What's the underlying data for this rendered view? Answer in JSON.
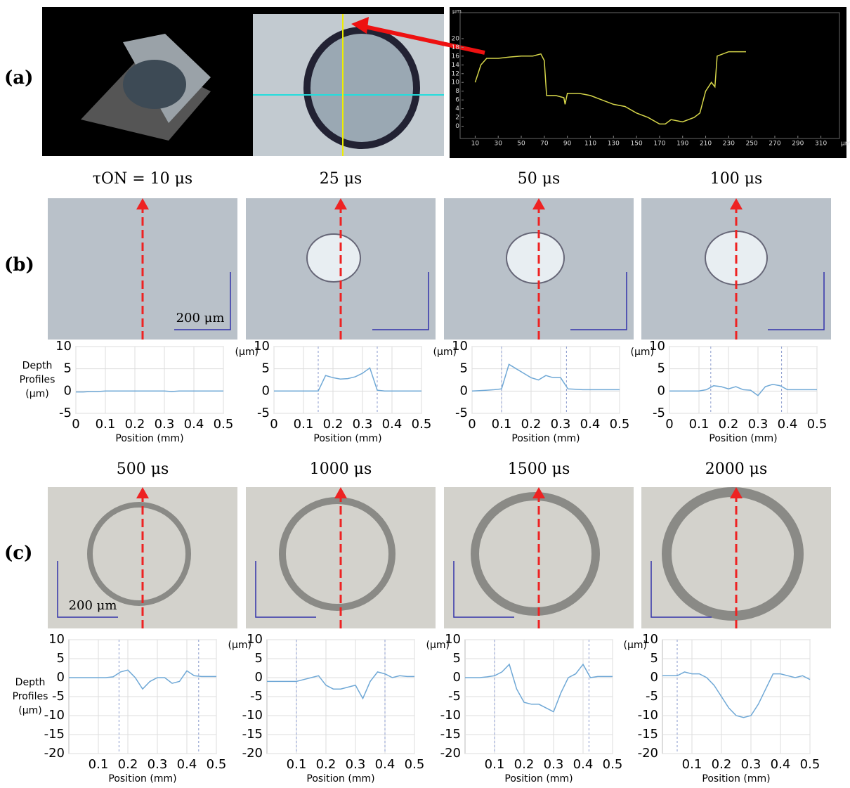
{
  "panel_labels": [
    "(a)",
    "(b)",
    "(c)"
  ],
  "scale_bars": [
    "200 μm",
    "200 μm"
  ],
  "chart_data": [
    {
      "type": "line",
      "x_unit": "μm",
      "y_unit": "μm",
      "grid": false,
      "color": "#d6d64a",
      "xlim": [
        0,
        320
      ],
      "xticks": [
        10,
        30,
        50,
        70,
        90,
        110,
        130,
        150,
        170,
        190,
        210,
        230,
        250,
        270,
        290,
        310
      ],
      "ylim": [
        -2,
        24
      ],
      "yticks": [
        0,
        2,
        4,
        6,
        8,
        10,
        12,
        14,
        16,
        18,
        20
      ],
      "x": [
        10,
        15,
        20,
        30,
        40,
        50,
        60,
        67,
        70,
        72,
        80,
        87,
        88,
        90,
        100,
        110,
        120,
        130,
        140,
        150,
        160,
        170,
        175,
        180,
        190,
        200,
        205,
        210,
        215,
        218,
        220,
        230,
        245
      ],
      "values": [
        10,
        14,
        15.5,
        15.5,
        15.8,
        16,
        16,
        16.5,
        15,
        7,
        7,
        6.5,
        5,
        7.5,
        7.5,
        7,
        6,
        5,
        4.5,
        3,
        2,
        0.5,
        0.5,
        1.5,
        1,
        2,
        3,
        8,
        10,
        9,
        16,
        17,
        17
      ]
    },
    {
      "type": "line",
      "title": "τON = 10 μs",
      "y_label": [
        "Depth",
        "Profiles",
        "(μm)"
      ],
      "x_label": "Position (mm)",
      "grid": true,
      "color": "#6fa8d6",
      "xlim": [
        0,
        0.5
      ],
      "xticks": [
        0,
        0.1,
        0.2,
        0.3,
        0.4,
        0.5
      ],
      "ylim": [
        -5,
        10
      ],
      "yticks": [
        -5,
        0,
        5,
        10
      ],
      "markers": [],
      "x": [
        0,
        0.025,
        0.05,
        0.075,
        0.1,
        0.125,
        0.15,
        0.175,
        0.2,
        0.225,
        0.25,
        0.275,
        0.3,
        0.325,
        0.35,
        0.375,
        0.4,
        0.425,
        0.45,
        0.475,
        0.5
      ],
      "values": [
        -0.2,
        -0.2,
        -0.1,
        -0.1,
        0,
        0,
        0,
        0,
        0,
        0,
        0,
        0,
        0,
        -0.1,
        0,
        0,
        0,
        0,
        0,
        0,
        0
      ]
    },
    {
      "type": "line",
      "title": "25 μs",
      "y_unit": "(μm)",
      "x_label": "Position (mm)",
      "grid": true,
      "color": "#6fa8d6",
      "xlim": [
        0,
        0.5
      ],
      "xticks": [
        0,
        0.1,
        0.2,
        0.3,
        0.4,
        0.5
      ],
      "ylim": [
        -5,
        10
      ],
      "yticks": [
        -5,
        0,
        5,
        10
      ],
      "markers": [
        0.15,
        0.35
      ],
      "x": [
        0,
        0.025,
        0.05,
        0.075,
        0.1,
        0.125,
        0.15,
        0.175,
        0.2,
        0.225,
        0.25,
        0.275,
        0.3,
        0.325,
        0.35,
        0.375,
        0.4,
        0.425,
        0.45,
        0.475,
        0.5
      ],
      "values": [
        0,
        0,
        0,
        0,
        0,
        0,
        0,
        3.5,
        3,
        2.7,
        2.8,
        3.2,
        4,
        5.2,
        0.2,
        0,
        0,
        0,
        0,
        0,
        0
      ]
    },
    {
      "type": "line",
      "title": "50 μs",
      "y_unit": "(μm)",
      "x_label": "Position (mm)",
      "grid": true,
      "color": "#6fa8d6",
      "xlim": [
        0,
        0.5
      ],
      "xticks": [
        0,
        0.1,
        0.2,
        0.3,
        0.4,
        0.5
      ],
      "ylim": [
        -5,
        10
      ],
      "yticks": [
        -5,
        0,
        5,
        10
      ],
      "markers": [
        0.1,
        0.32
      ],
      "x": [
        0,
        0.025,
        0.05,
        0.075,
        0.1,
        0.125,
        0.15,
        0.175,
        0.2,
        0.225,
        0.25,
        0.275,
        0.3,
        0.325,
        0.35,
        0.375,
        0.4,
        0.425,
        0.45,
        0.475,
        0.5
      ],
      "values": [
        0,
        0.1,
        0.2,
        0.3,
        0.5,
        6,
        5,
        4,
        3,
        2.5,
        3.5,
        3,
        3,
        0.5,
        0.4,
        0.3,
        0.3,
        0.3,
        0.3,
        0.3,
        0.3
      ]
    },
    {
      "type": "line",
      "title": "100 μs",
      "y_unit": "(μm)",
      "x_label": "Position (mm)",
      "grid": true,
      "color": "#6fa8d6",
      "xlim": [
        0,
        0.5
      ],
      "xticks": [
        0,
        0.1,
        0.2,
        0.3,
        0.4,
        0.5
      ],
      "ylim": [
        -5,
        10
      ],
      "yticks": [
        -5,
        0,
        5,
        10
      ],
      "markers": [
        0.14,
        0.38
      ],
      "x": [
        0,
        0.025,
        0.05,
        0.075,
        0.1,
        0.125,
        0.15,
        0.175,
        0.2,
        0.225,
        0.25,
        0.275,
        0.3,
        0.325,
        0.35,
        0.375,
        0.4,
        0.425,
        0.45,
        0.475,
        0.5
      ],
      "values": [
        0,
        0,
        0,
        0,
        0,
        0.3,
        1.2,
        1,
        0.5,
        1,
        0.3,
        0.2,
        -1,
        1,
        1.5,
        1.2,
        0.3,
        0.3,
        0.3,
        0.3,
        0.3
      ]
    },
    {
      "type": "line",
      "title": "500 μs",
      "y_label": [
        "Depth",
        "Profiles",
        "(μm)"
      ],
      "x_label": "Position (mm)",
      "grid": true,
      "color": "#6fa8d6",
      "xlim": [
        0,
        0.5
      ],
      "xticks": [
        0.1,
        0.2,
        0.3,
        0.4,
        0.5
      ],
      "ylim": [
        -20,
        10
      ],
      "yticks": [
        -20,
        -15,
        -10,
        -5,
        0,
        5,
        10
      ],
      "markers": [
        0.17,
        0.44
      ],
      "x": [
        0,
        0.025,
        0.05,
        0.075,
        0.1,
        0.125,
        0.15,
        0.175,
        0.2,
        0.225,
        0.25,
        0.275,
        0.3,
        0.325,
        0.35,
        0.375,
        0.4,
        0.425,
        0.45,
        0.475,
        0.5
      ],
      "values": [
        0,
        0,
        0,
        0,
        0,
        0,
        0.2,
        1.5,
        2,
        0,
        -3,
        -1,
        0,
        0,
        -1.5,
        -1,
        1.8,
        0.5,
        0.3,
        0.3,
        0.3
      ]
    },
    {
      "type": "line",
      "title": "1000 μs",
      "y_unit": "(μm)",
      "x_label": "Position (mm)",
      "grid": true,
      "color": "#6fa8d6",
      "xlim": [
        0,
        0.5
      ],
      "xticks": [
        0.1,
        0.2,
        0.3,
        0.4,
        0.5
      ],
      "ylim": [
        -20,
        10
      ],
      "yticks": [
        -20,
        -15,
        -10,
        -5,
        0,
        5,
        10
      ],
      "markers": [
        0.1,
        0.4
      ],
      "x": [
        0,
        0.025,
        0.05,
        0.075,
        0.1,
        0.125,
        0.15,
        0.175,
        0.2,
        0.225,
        0.25,
        0.275,
        0.3,
        0.325,
        0.35,
        0.375,
        0.4,
        0.425,
        0.45,
        0.475,
        0.5
      ],
      "values": [
        -1,
        -1,
        -1,
        -1,
        -1,
        -0.5,
        0,
        0.5,
        -2,
        -3,
        -3,
        -2.5,
        -2,
        -5.5,
        -1,
        1.5,
        1,
        0,
        0.5,
        0.3,
        0.3
      ]
    },
    {
      "type": "line",
      "title": "1500 μs",
      "y_unit": "(μm)",
      "x_label": "Position (mm)",
      "grid": true,
      "color": "#6fa8d6",
      "xlim": [
        0,
        0.5
      ],
      "xticks": [
        0.1,
        0.2,
        0.3,
        0.4,
        0.5
      ],
      "ylim": [
        -20,
        10
      ],
      "yticks": [
        -20,
        -15,
        -10,
        -5,
        0,
        5,
        10
      ],
      "markers": [
        0.1,
        0.42
      ],
      "x": [
        0,
        0.025,
        0.05,
        0.075,
        0.1,
        0.125,
        0.15,
        0.175,
        0.2,
        0.225,
        0.25,
        0.275,
        0.3,
        0.325,
        0.35,
        0.375,
        0.4,
        0.425,
        0.45,
        0.475,
        0.5
      ],
      "values": [
        0,
        0,
        0,
        0.2,
        0.5,
        1.5,
        3.5,
        -3,
        -6.5,
        -7,
        -7,
        -8,
        -9,
        -4,
        0,
        1,
        3.5,
        0,
        0.3,
        0.3,
        0.3
      ]
    },
    {
      "type": "line",
      "title": "2000 μs",
      "y_unit": "(μm)",
      "x_label": "Position (mm)",
      "grid": true,
      "color": "#6fa8d6",
      "xlim": [
        0,
        0.5
      ],
      "xticks": [
        0.1,
        0.2,
        0.3,
        0.4,
        0.5
      ],
      "ylim": [
        -20,
        10
      ],
      "yticks": [
        -20,
        -15,
        -10,
        -5,
        0,
        5,
        10
      ],
      "markers": [
        0.05
      ],
      "x": [
        0,
        0.025,
        0.05,
        0.075,
        0.1,
        0.125,
        0.15,
        0.175,
        0.2,
        0.225,
        0.25,
        0.275,
        0.3,
        0.325,
        0.35,
        0.375,
        0.4,
        0.425,
        0.45,
        0.475,
        0.5
      ],
      "values": [
        0.5,
        0.5,
        0.5,
        1.5,
        1,
        1,
        0,
        -2,
        -5,
        -8,
        -10,
        -10.5,
        -10,
        -7,
        -3,
        1,
        1,
        0.5,
        0,
        0.5,
        -0.5
      ]
    }
  ]
}
